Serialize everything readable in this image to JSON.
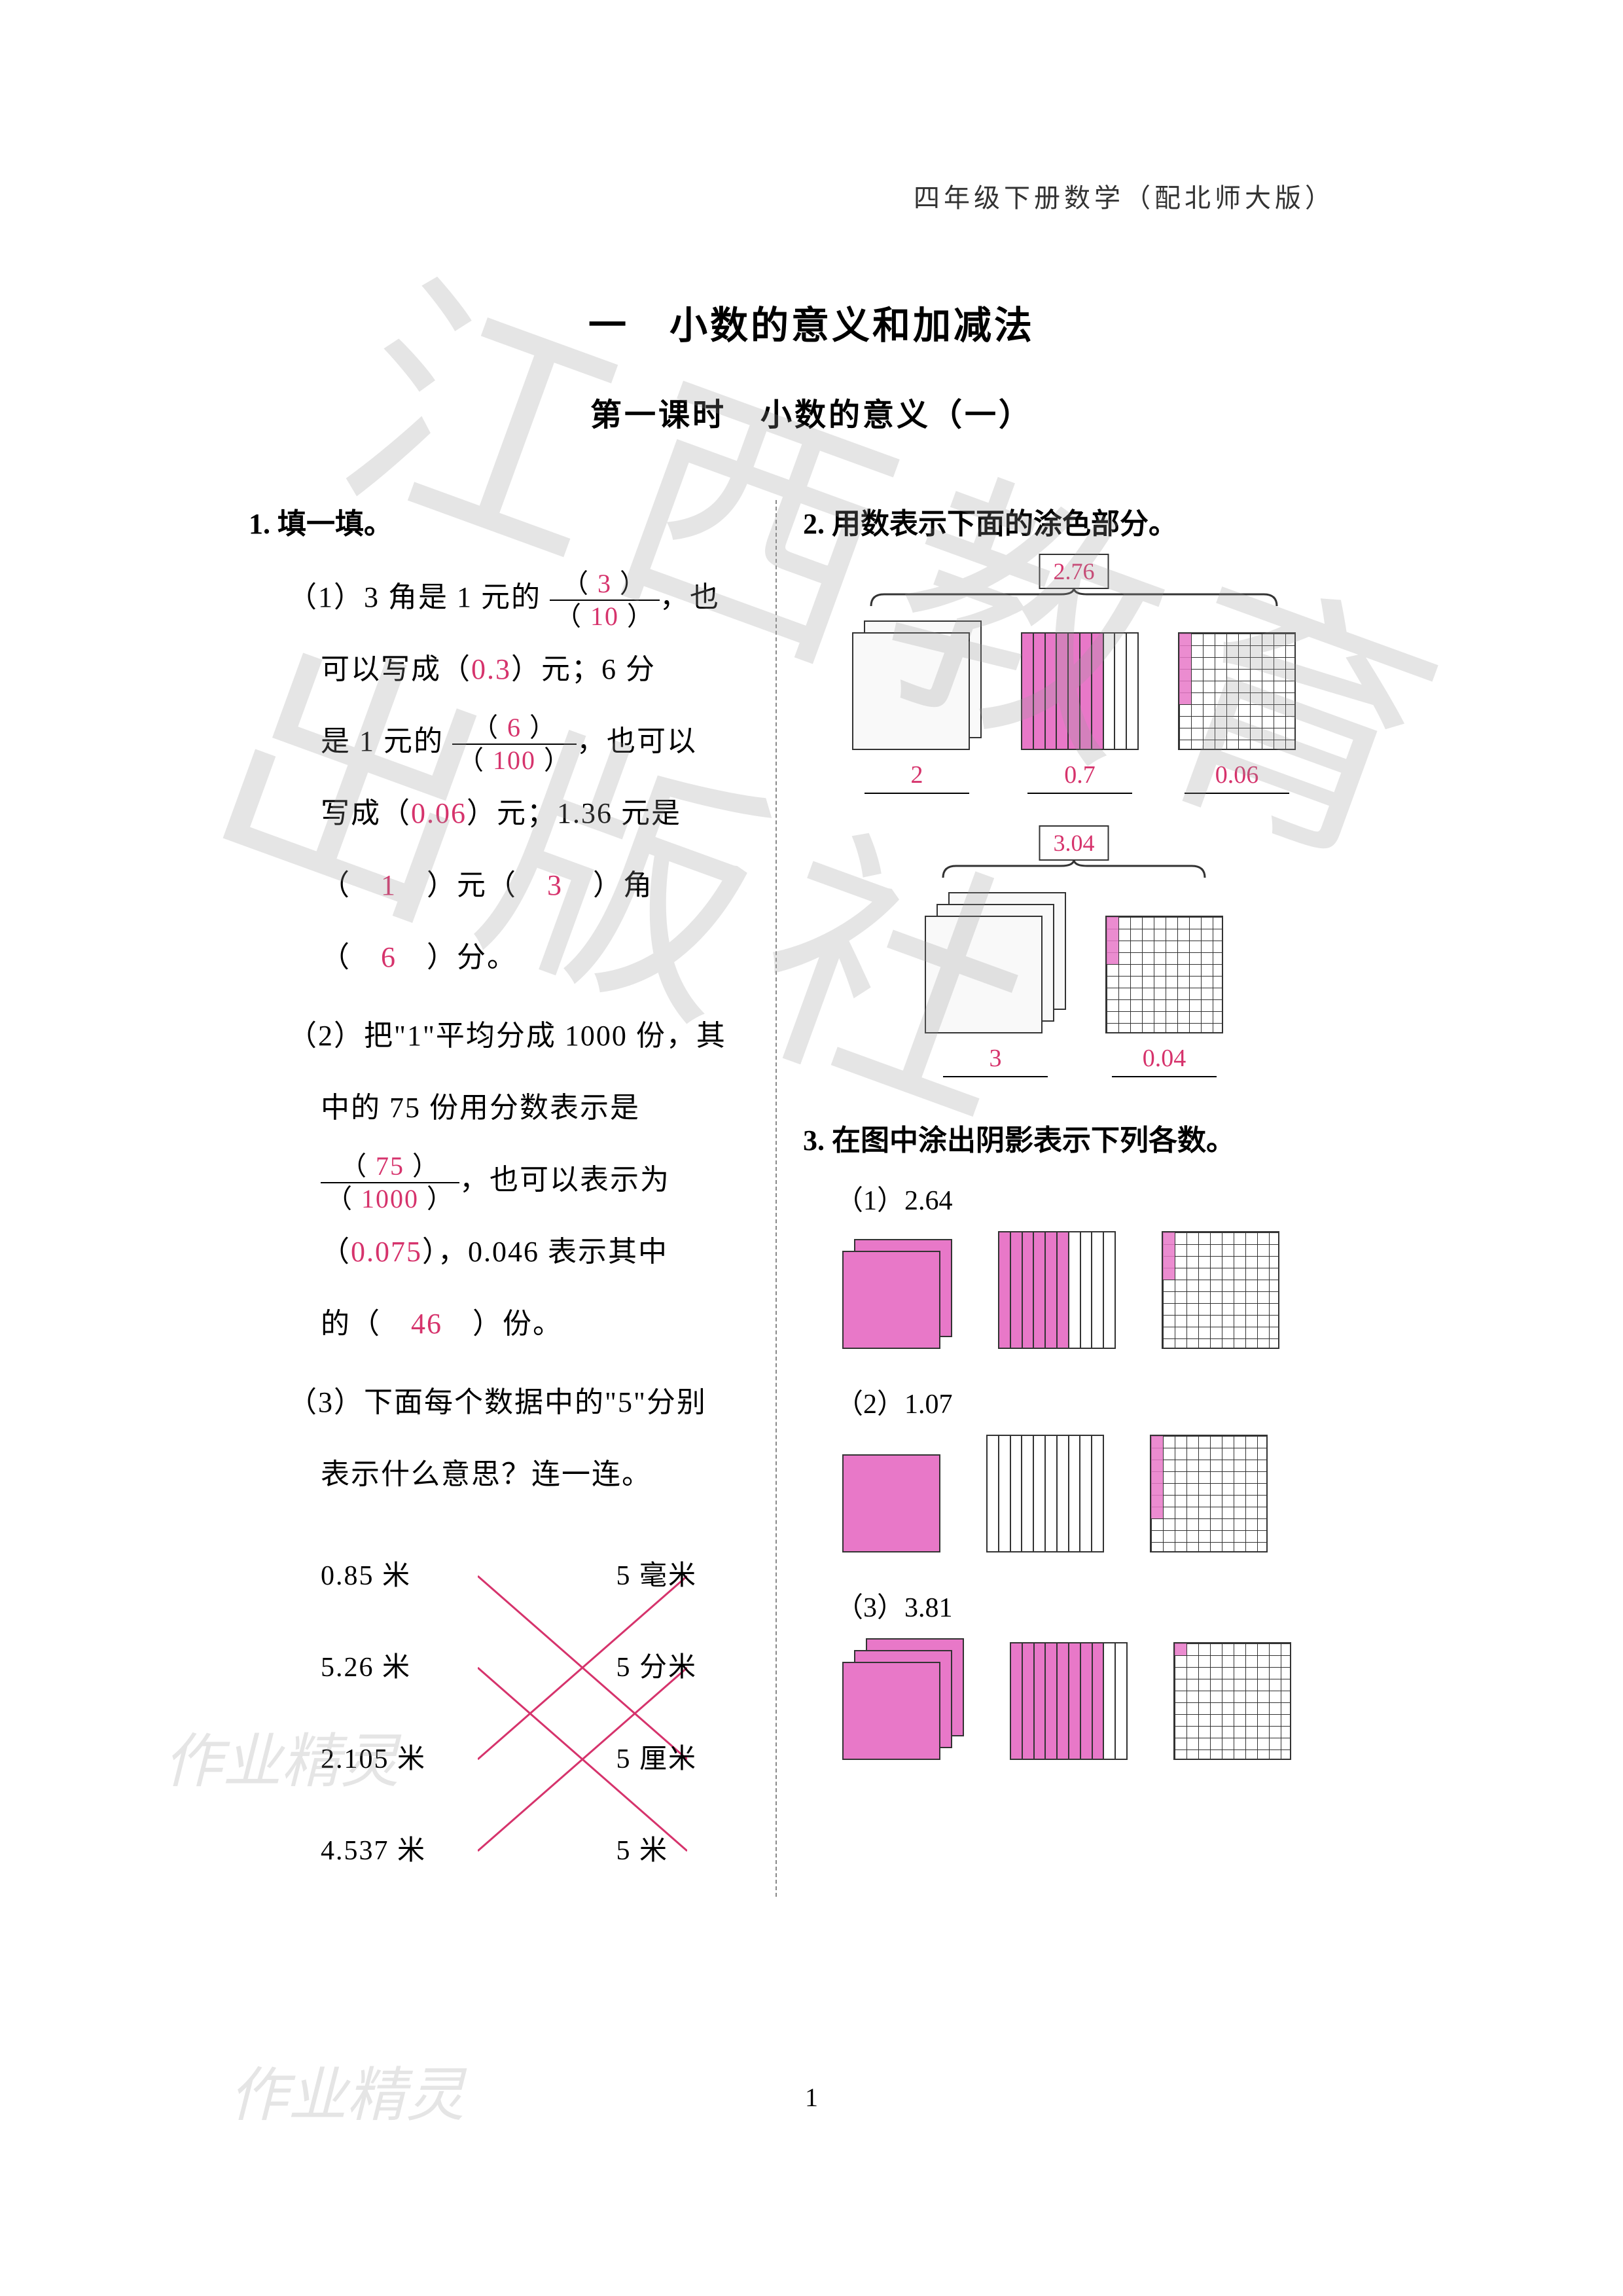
{
  "header_note": "四年级下册数学（配北师大版）",
  "chapter_title": "一　小数的意义和加减法",
  "lesson_title": "第一课时　小数的意义（一）",
  "page_number": "1",
  "answer_color": "#d6336c",
  "fill_color": "#e878c8",
  "q1": {
    "head": "1. 填一填。",
    "p1": {
      "prefix": "（1）3 角是 1 元的",
      "frac1": {
        "num": "3",
        "den": "10"
      },
      "text_a": "，也",
      "line2_a": "可以写成（",
      "ans_a": "0.3",
      "line2_b": "）元；6 分",
      "line3_a": "是 1 元的",
      "frac2": {
        "num": "6",
        "den": "100"
      },
      "line3_b": "，也可以",
      "line4_a": "写成（",
      "ans_b": "0.06",
      "line4_b": "）元；1.36 元是",
      "line5_a": "（",
      "ans_c": "1",
      "line5_b": "）元（",
      "ans_d": "3",
      "line5_c": "）角",
      "line6_a": "（",
      "ans_e": "6",
      "line6_b": "）分。"
    },
    "p2": {
      "prefix": "（2）把\"1\"平均分成 1000 份，其",
      "line2_a": "中的 75 份用分数表示是",
      "frac": {
        "num": "75",
        "den": "1000"
      },
      "line3_b": "，也可以表示为",
      "line4_a": "（",
      "ans_a": "0.075",
      "line4_b": "），0.046 表示其中",
      "line5_a": "的（",
      "ans_b": "46",
      "line5_b": "）份。"
    },
    "p3": {
      "prefix": "（3）下面每个数据中的\"5\"分别",
      "line2": "表示什么意思？连一连。",
      "left_items": [
        "0.85 米",
        "5.26 米",
        "2.105 米",
        "4.537 米"
      ],
      "right_items": [
        "5 毫米",
        "5 分米",
        "5 厘米",
        "5 米"
      ],
      "connections": [
        [
          0,
          2
        ],
        [
          1,
          3
        ],
        [
          2,
          0
        ],
        [
          3,
          1
        ]
      ]
    }
  },
  "q2": {
    "head": "2. 用数表示下面的涂色部分。",
    "group1": {
      "bracket_value": "2.76",
      "items": [
        {
          "type": "flats",
          "count": 2,
          "label": "2",
          "fill": false
        },
        {
          "type": "tens",
          "filled": 7,
          "label": "0.7"
        },
        {
          "type": "hund",
          "filled": 6,
          "label": "0.06"
        }
      ]
    },
    "group2": {
      "bracket_value": "3.04",
      "items": [
        {
          "type": "flats",
          "count": 3,
          "label": "3",
          "fill": false
        },
        {
          "type": "hund",
          "filled": 4,
          "label": "0.04"
        }
      ]
    }
  },
  "q3": {
    "head": "3. 在图中涂出阴影表示下列各数。",
    "items": [
      {
        "label": "（1）2.64",
        "flats": 2,
        "flat_fill": true,
        "tens_fill": 6,
        "hund_fill": 4
      },
      {
        "label": "（2）1.07",
        "flats": 1,
        "flat_fill": true,
        "tens_fill": 0,
        "hund_fill": 7
      },
      {
        "label": "（3）3.81",
        "flats": 3,
        "flat_fill": true,
        "tens_fill": 8,
        "hund_fill": 1
      }
    ]
  },
  "watermarks": {
    "wm1": "作业精灵",
    "wm2": "作业精灵",
    "big": "江西教育出版社"
  }
}
